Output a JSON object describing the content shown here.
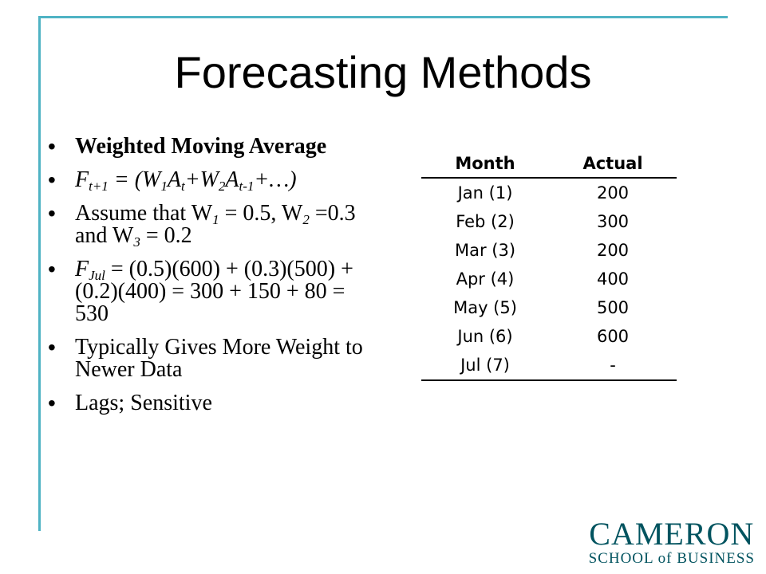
{
  "slide": {
    "title": "Forecasting Methods"
  },
  "bullets": {
    "b1": "Weighted Moving Average",
    "b2": {
      "F": "F",
      "t1": "t+1",
      "eq": " = (W",
      "s1": "1",
      "A1": "A",
      "st": "t",
      "plus": "+W",
      "s2": "2",
      "A2": "A",
      "stm1": "t-1",
      "tail": "+…)"
    },
    "b3": {
      "lead": "Assume that W",
      "s1": "1",
      "m1": " = 0.5, W",
      "s2": "2",
      "m2": " =0.3 and W",
      "s3": "3",
      "m3": " = 0.2"
    },
    "b4": {
      "F": "F",
      "sub": "Jul",
      "rest": " = (0.5)(600) + (0.3)(500) + (0.2)(400) = 300 + 150 + 80 = 530"
    },
    "b5": "Typically Gives More Weight to Newer Data",
    "b6": "Lags; Sensitive"
  },
  "table": {
    "headers": [
      "Month",
      "Actual"
    ],
    "rows": [
      [
        "Jan (1)",
        "200"
      ],
      [
        "Feb (2)",
        "300"
      ],
      [
        "Mar (3)",
        "200"
      ],
      [
        "Apr (4)",
        "400"
      ],
      [
        "May (5)",
        "500"
      ],
      [
        "Jun (6)",
        "600"
      ],
      [
        "Jul (7)",
        "-"
      ]
    ]
  },
  "logo": {
    "line1": "CAMERON",
    "line2": "SCHOOL of BUSINESS"
  },
  "colors": {
    "accent": "#4fb3c4",
    "logo": "#00535f"
  }
}
